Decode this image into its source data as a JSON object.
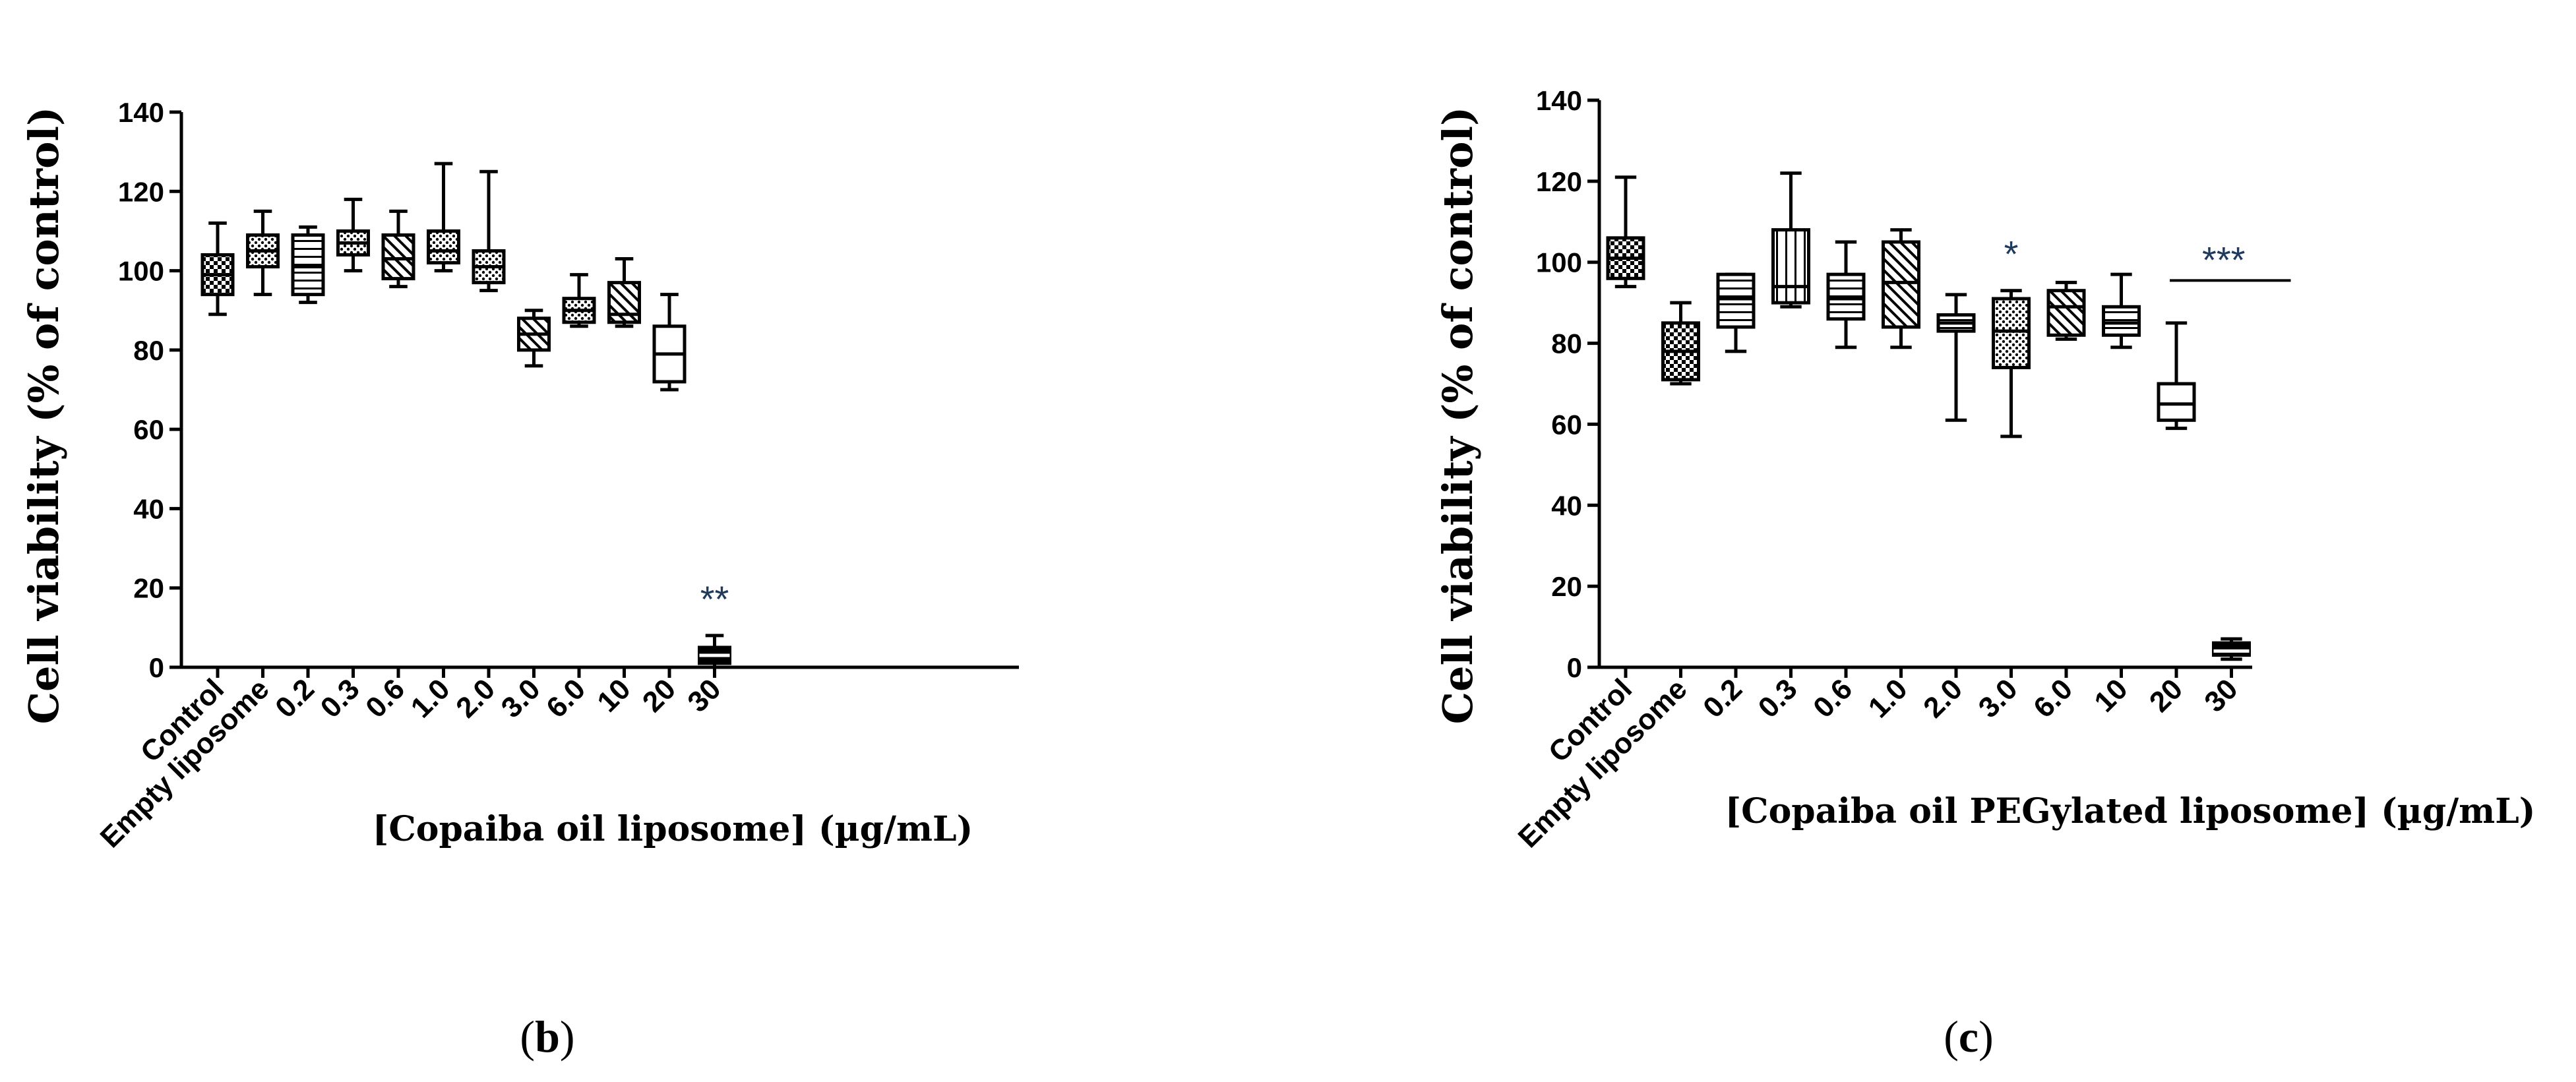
{
  "chart_data": [
    {
      "type": "box",
      "panel_label": "b",
      "title": "",
      "xlabel": "[Copaiba oil liposome] (µg/mL)",
      "ylabel": "Cell viability (% of control)",
      "ylim": [
        0,
        140
      ],
      "yticks": [
        "0",
        "20",
        "40",
        "60",
        "80",
        "100",
        "120",
        "140"
      ],
      "categories": [
        "Control",
        "Empty liposome",
        "0.2",
        "0.3",
        "0.6",
        "1.0",
        "2.0",
        "3.0",
        "6.0",
        "10",
        "20",
        "30"
      ],
      "boxes": [
        {
          "min": 89,
          "q1": 94,
          "median": 99,
          "q3": 104,
          "max": 112,
          "fill": "checker"
        },
        {
          "min": 94,
          "q1": 101,
          "median": 105,
          "q3": 109,
          "max": 115,
          "fill": "dots"
        },
        {
          "min": 92,
          "q1": 94,
          "median": 101,
          "q3": 109,
          "max": 111,
          "fill": "hlines"
        },
        {
          "min": 100,
          "q1": 104,
          "median": 107,
          "q3": 110,
          "max": 118,
          "fill": "dots"
        },
        {
          "min": 96,
          "q1": 98,
          "median": 103,
          "q3": 109,
          "max": 115,
          "fill": "diag"
        },
        {
          "min": 100,
          "q1": 102,
          "median": 105,
          "q3": 110,
          "max": 127,
          "fill": "dots"
        },
        {
          "min": 95,
          "q1": 97,
          "median": 101,
          "q3": 105,
          "max": 125,
          "fill": "dots"
        },
        {
          "min": 76,
          "q1": 80,
          "median": 84,
          "q3": 88,
          "max": 90,
          "fill": "diag"
        },
        {
          "min": 86,
          "q1": 87,
          "median": 90,
          "q3": 93,
          "max": 99,
          "fill": "dots"
        },
        {
          "min": 86,
          "q1": 87,
          "median": 89,
          "q3": 97,
          "max": 103,
          "fill": "diag"
        },
        {
          "min": 70,
          "q1": 72,
          "median": 79,
          "q3": 86,
          "max": 94,
          "fill": "none"
        },
        {
          "min": 0,
          "q1": 1,
          "median": 3,
          "q3": 5,
          "max": 8,
          "fill": "solid"
        }
      ],
      "annotations": [
        {
          "category": "30",
          "text": "**"
        }
      ]
    },
    {
      "type": "box",
      "panel_label": "c",
      "title": "",
      "xlabel": "[Copaiba oil PEGylated liposome] (µg/mL)",
      "ylabel": "Cell viability (% of control)",
      "ylim": [
        0,
        140
      ],
      "yticks": [
        "0",
        "20",
        "40",
        "60",
        "80",
        "100",
        "120",
        "140"
      ],
      "categories": [
        "Control",
        "Empty liposome",
        "0.2",
        "0.3",
        "0.6",
        "1.0",
        "2.0",
        "3.0",
        "6.0",
        "10",
        "20",
        "30"
      ],
      "boxes": [
        {
          "min": 94,
          "q1": 96,
          "median": 101,
          "q3": 106,
          "max": 121,
          "fill": "checker"
        },
        {
          "min": 70,
          "q1": 71,
          "median": 78,
          "q3": 85,
          "max": 90,
          "fill": "checker"
        },
        {
          "min": 78,
          "q1": 84,
          "median": 91,
          "q3": 97,
          "max": 97,
          "fill": "hlines"
        },
        {
          "min": 89,
          "q1": 90,
          "median": 94,
          "q3": 108,
          "max": 122,
          "fill": "vlines"
        },
        {
          "min": 79,
          "q1": 86,
          "median": 91,
          "q3": 97,
          "max": 105,
          "fill": "hlines"
        },
        {
          "min": 79,
          "q1": 84,
          "median": 95,
          "q3": 105,
          "max": 108,
          "fill": "diag"
        },
        {
          "min": 61,
          "q1": 83,
          "median": 85,
          "q3": 87,
          "max": 92,
          "fill": "hlines"
        },
        {
          "min": 57,
          "q1": 74,
          "median": 83,
          "q3": 91,
          "max": 93,
          "fill": "dots"
        },
        {
          "min": 81,
          "q1": 82,
          "median": 89,
          "q3": 93,
          "max": 95,
          "fill": "diag"
        },
        {
          "min": 79,
          "q1": 82,
          "median": 85,
          "q3": 89,
          "max": 97,
          "fill": "hlines"
        },
        {
          "min": 59,
          "q1": 61,
          "median": 65,
          "q3": 70,
          "max": 85,
          "fill": "none"
        },
        {
          "min": 2,
          "q1": 3,
          "median": 4,
          "q3": 6,
          "max": 7,
          "fill": "solid"
        }
      ],
      "annotations": [
        {
          "category": "3.0",
          "text": "*"
        },
        {
          "category": "20",
          "category_end": "30",
          "text": "***",
          "bar": true
        }
      ]
    }
  ]
}
